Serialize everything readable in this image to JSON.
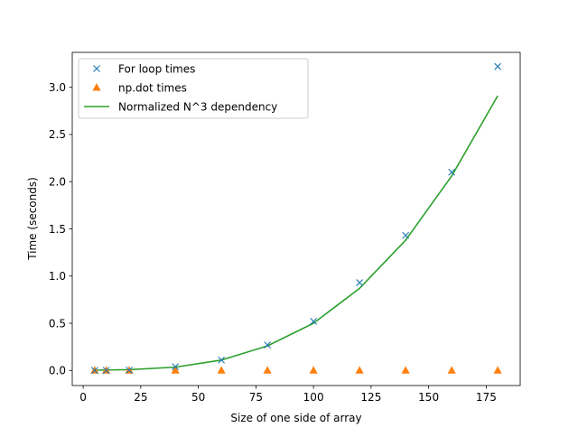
{
  "chart_data": {
    "type": "line",
    "title": "",
    "xlabel": "Size of one side of array",
    "ylabel": "Time (seconds)",
    "xlim": [
      -4.75,
      189.75
    ],
    "ylim": [
      -0.16,
      3.37
    ],
    "xticks": [
      0,
      25,
      50,
      75,
      100,
      125,
      150,
      175
    ],
    "xtick_labels": [
      "0",
      "25",
      "50",
      "75",
      "100",
      "125",
      "150",
      "175"
    ],
    "yticks": [
      0.0,
      0.5,
      1.0,
      1.5,
      2.0,
      2.5,
      3.0
    ],
    "ytick_labels": [
      "0.0",
      "0.5",
      "1.0",
      "1.5",
      "2.0",
      "2.5",
      "3.0"
    ],
    "grid": false,
    "legend_position": "upper-left",
    "x": [
      5,
      10,
      20,
      40,
      60,
      80,
      100,
      120,
      140,
      160,
      180
    ],
    "series": [
      {
        "name": "For loop times",
        "style": "marker-x",
        "color": "#1f77b4",
        "values": [
          0.0,
          0.0,
          0.003,
          0.04,
          0.11,
          0.27,
          0.52,
          0.93,
          1.43,
          2.1,
          3.22
        ]
      },
      {
        "name": "np.dot times",
        "style": "marker-triangle",
        "color": "#ff7f0e",
        "values": [
          0.0,
          0.0,
          0.0,
          0.0,
          0.0,
          0.0,
          0.0,
          0.0,
          0.0,
          0.0,
          0.0
        ]
      },
      {
        "name": "Normalized N^3 dependency",
        "style": "line",
        "color": "#2ca02c",
        "values": [
          0.0025,
          0.005,
          0.008,
          0.035,
          0.11,
          0.26,
          0.5,
          0.87,
          1.38,
          2.06,
          2.91
        ]
      }
    ]
  }
}
